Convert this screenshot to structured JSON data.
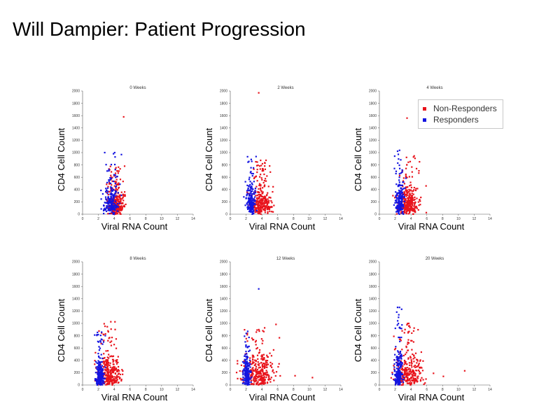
{
  "slide": {
    "title": "Will Dampier: Patient Progression"
  },
  "legend": {
    "items": [
      {
        "name": "Non-Responders",
        "color": "#e8141c"
      },
      {
        "name": "Responders",
        "color": "#1414e0"
      }
    ],
    "placement": "top-right of third panel"
  },
  "chart_data": [
    {
      "type": "scatter",
      "title": "0 Weeks",
      "xlabel": "Viral RNA Count",
      "ylabel": "CD4 Cell Count",
      "xlim": [
        0,
        14
      ],
      "ylim": [
        0,
        2000
      ],
      "xticks": [
        "0",
        "2",
        "4",
        "6",
        "8",
        "10",
        "12",
        "14"
      ],
      "yticks": [
        "0",
        "200",
        "400",
        "600",
        "800",
        "1000",
        "1200",
        "1400",
        "1600",
        "1800",
        "2000"
      ],
      "series": [
        {
          "name": "Non-Responders",
          "color": "#e8141c",
          "approx_points": 300,
          "x_center": 4.2,
          "x_spread": 0.7,
          "y_center": 280,
          "y_spread": 200,
          "y_max": 780,
          "outliers": [
            {
              "x": 5.2,
              "y": 1580
            }
          ]
        },
        {
          "name": "Responders",
          "color": "#1414e0",
          "approx_points": 200,
          "x_center": 3.6,
          "x_spread": 0.6,
          "y_center": 320,
          "y_spread": 220,
          "y_max": 1000,
          "outliers": [
            {
              "x": 2.8,
              "y": 1000
            }
          ]
        }
      ]
    },
    {
      "type": "scatter",
      "title": "2 Weeks",
      "xlabel": "Viral RNA Count",
      "ylabel": "CD4 Cell Count",
      "xlim": [
        0,
        14
      ],
      "ylim": [
        0,
        2000
      ],
      "xticks": [
        "0",
        "2",
        "4",
        "6",
        "8",
        "10",
        "12",
        "14"
      ],
      "yticks": [
        "0",
        "200",
        "400",
        "600",
        "800",
        "1000",
        "1200",
        "1400",
        "1600",
        "1800",
        "2000"
      ],
      "series": [
        {
          "name": "Non-Responders",
          "color": "#e8141c",
          "approx_points": 300,
          "x_center": 3.9,
          "x_spread": 0.8,
          "y_center": 300,
          "y_spread": 210,
          "y_max": 900,
          "outliers": [
            {
              "x": 3.6,
              "y": 1970
            }
          ]
        },
        {
          "name": "Responders",
          "color": "#1414e0",
          "approx_points": 200,
          "x_center": 2.6,
          "x_spread": 0.35,
          "y_center": 350,
          "y_spread": 230,
          "y_max": 1000,
          "outliers": []
        }
      ]
    },
    {
      "type": "scatter",
      "title": "4 Weeks",
      "xlabel": "Viral RNA Count",
      "ylabel": "CD4 Cell Count",
      "xlim": [
        0,
        14
      ],
      "ylim": [
        0,
        2000
      ],
      "xticks": [
        "0",
        "2",
        "4",
        "6",
        "8",
        "10",
        "12",
        "14"
      ],
      "yticks": [
        "0",
        "200",
        "400",
        "600",
        "800",
        "1000",
        "1200",
        "1400",
        "1600",
        "1800",
        "2000"
      ],
      "series": [
        {
          "name": "Non-Responders",
          "color": "#e8141c",
          "approx_points": 300,
          "x_center": 3.7,
          "x_spread": 0.9,
          "y_center": 320,
          "y_spread": 220,
          "y_max": 950,
          "outliers": [
            {
              "x": 3.5,
              "y": 1560
            }
          ]
        },
        {
          "name": "Responders",
          "color": "#1414e0",
          "approx_points": 200,
          "x_center": 2.6,
          "x_spread": 0.35,
          "y_center": 350,
          "y_spread": 230,
          "y_max": 1040,
          "outliers": []
        }
      ]
    },
    {
      "type": "scatter",
      "title": "8 Weeks",
      "xlabel": "Viral RNA Count",
      "ylabel": "CD4 Cell Count",
      "xlim": [
        0,
        14
      ],
      "ylim": [
        0,
        2000
      ],
      "xticks": [
        "0",
        "2",
        "4",
        "6",
        "8",
        "10",
        "12",
        "14"
      ],
      "yticks": [
        "0",
        "200",
        "400",
        "600",
        "800",
        "1000",
        "1200",
        "1400",
        "1600",
        "1800",
        "2000"
      ],
      "series": [
        {
          "name": "Non-Responders",
          "color": "#e8141c",
          "approx_points": 300,
          "x_center": 3.4,
          "x_spread": 0.9,
          "y_center": 300,
          "y_spread": 230,
          "y_max": 1050,
          "outliers": []
        },
        {
          "name": "Responders",
          "color": "#1414e0",
          "approx_points": 200,
          "x_center": 2.2,
          "x_spread": 0.35,
          "y_center": 260,
          "y_spread": 200,
          "y_max": 860,
          "outliers": []
        }
      ]
    },
    {
      "type": "scatter",
      "title": "12 Weeks",
      "xlabel": "Viral RNA Count",
      "ylabel": "CD4 Cell Count",
      "xlim": [
        0,
        14
      ],
      "ylim": [
        0,
        2000
      ],
      "xticks": [
        "0",
        "2",
        "4",
        "6",
        "8",
        "10",
        "12",
        "14"
      ],
      "yticks": [
        "0",
        "200",
        "400",
        "600",
        "800",
        "1000",
        "1200",
        "1400",
        "1600",
        "1800",
        "2000"
      ],
      "series": [
        {
          "name": "Non-Responders",
          "color": "#e8141c",
          "approx_points": 320,
          "x_center": 3.6,
          "x_spread": 1.3,
          "y_center": 330,
          "y_spread": 240,
          "y_max": 1000,
          "outliers": [
            {
              "x": 8.2,
              "y": 150
            },
            {
              "x": 10.4,
              "y": 120
            }
          ]
        },
        {
          "name": "Responders",
          "color": "#1414e0",
          "approx_points": 200,
          "x_center": 2.1,
          "x_spread": 0.3,
          "y_center": 320,
          "y_spread": 220,
          "y_max": 900,
          "outliers": [
            {
              "x": 3.6,
              "y": 1560
            }
          ]
        }
      ]
    },
    {
      "type": "scatter",
      "title": "20 Weeks",
      "xlabel": "Viral RNA Count",
      "ylabel": "CD4 Cell Count",
      "xlim": [
        0,
        14
      ],
      "ylim": [
        0,
        2000
      ],
      "xticks": [
        "0",
        "2",
        "4",
        "6",
        "8",
        "10",
        "12",
        "14"
      ],
      "yticks": [
        "0",
        "200",
        "400",
        "600",
        "800",
        "1000",
        "1200",
        "1400",
        "1600",
        "1800",
        "2000"
      ],
      "series": [
        {
          "name": "Non-Responders",
          "color": "#e8141c",
          "approx_points": 300,
          "x_center": 3.6,
          "x_spread": 1.2,
          "y_center": 330,
          "y_spread": 230,
          "y_max": 1000,
          "outliers": [
            {
              "x": 10.8,
              "y": 230
            },
            {
              "x": 8.1,
              "y": 140
            }
          ]
        },
        {
          "name": "Responders",
          "color": "#1414e0",
          "approx_points": 200,
          "x_center": 2.4,
          "x_spread": 0.35,
          "y_center": 340,
          "y_spread": 230,
          "y_max": 1260,
          "outliers": [
            {
              "x": 2.3,
              "y": 1260
            }
          ]
        }
      ]
    }
  ]
}
